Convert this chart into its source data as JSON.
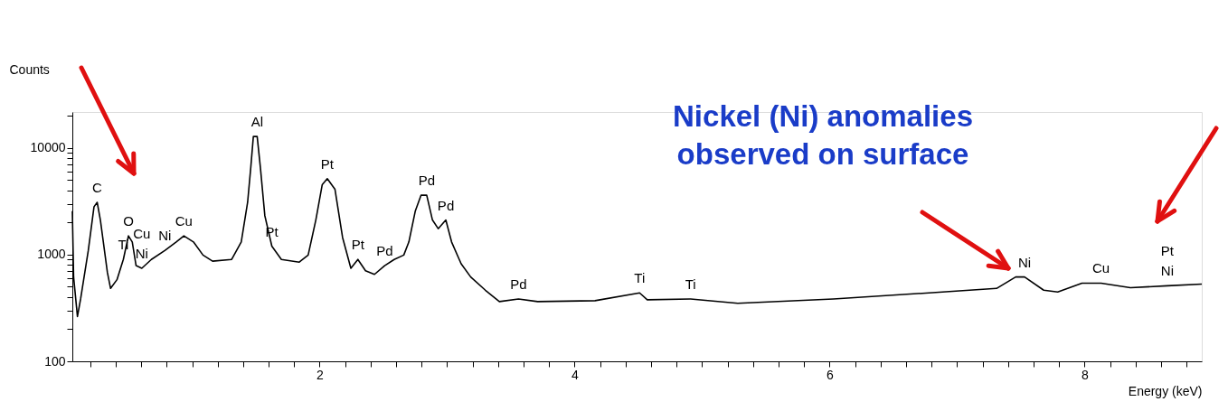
{
  "chart_data": {
    "type": "line",
    "xlabel": "Energy (keV)",
    "ylabel": "Counts",
    "log": "y",
    "grid": false,
    "marker": "none",
    "line_style": "solid",
    "xlim": [
      0.06,
      8.92
    ],
    "ylim": [
      100,
      21700
    ],
    "xticks": [
      {
        "value": 0.2,
        "label": null
      },
      {
        "value": 0.4,
        "label": null
      },
      {
        "value": 0.6,
        "label": null
      },
      {
        "value": 0.8,
        "label": null
      },
      {
        "value": 1,
        "label": null
      },
      {
        "value": 1.2,
        "label": null
      },
      {
        "value": 1.4,
        "label": null
      },
      {
        "value": 1.6,
        "label": null
      },
      {
        "value": 1.8,
        "label": null
      },
      2,
      {
        "value": 2.2,
        "label": null
      },
      {
        "value": 2.4,
        "label": null
      },
      {
        "value": 2.6,
        "label": null
      },
      {
        "value": 2.8,
        "label": null
      },
      {
        "value": 3,
        "label": null
      },
      {
        "value": 3.2,
        "label": null
      },
      {
        "value": 3.4,
        "label": null
      },
      {
        "value": 3.6,
        "label": null
      },
      {
        "value": 3.8,
        "label": null
      },
      4,
      {
        "value": 4.2,
        "label": null
      },
      {
        "value": 4.4,
        "label": null
      },
      {
        "value": 4.6,
        "label": null
      },
      {
        "value": 4.8,
        "label": null
      },
      {
        "value": 5,
        "label": null
      },
      {
        "value": 5.2,
        "label": null
      },
      {
        "value": 5.4,
        "label": null
      },
      {
        "value": 5.6,
        "label": null
      },
      {
        "value": 5.8,
        "label": null
      },
      6,
      {
        "value": 6.2,
        "label": null
      },
      {
        "value": 6.4,
        "label": null
      },
      {
        "value": 6.6,
        "label": null
      },
      {
        "value": 6.8,
        "label": null
      },
      {
        "value": 7,
        "label": null
      },
      {
        "value": 7.2,
        "label": null
      },
      {
        "value": 7.4,
        "label": null
      },
      {
        "value": 7.6,
        "label": null
      },
      {
        "value": 7.8,
        "label": null
      },
      8,
      {
        "value": 8.2,
        "label": null
      },
      {
        "value": 8.4,
        "label": null
      },
      {
        "value": 8.6,
        "label": null
      },
      {
        "value": 8.8,
        "label": null
      }
    ],
    "yticks": [
      100,
      {
        "value": 200,
        "label": null
      },
      {
        "value": 300,
        "label": null
      },
      {
        "value": 400,
        "label": null
      },
      {
        "value": 500,
        "label": null
      },
      {
        "value": 600,
        "label": null
      },
      {
        "value": 700,
        "label": null
      },
      {
        "value": 800,
        "label": null
      },
      {
        "value": 900,
        "label": null
      },
      1000,
      {
        "value": 2000,
        "label": null
      },
      {
        "value": 3000,
        "label": null
      },
      {
        "value": 4000,
        "label": null
      },
      {
        "value": 5000,
        "label": null
      },
      {
        "value": 6000,
        "label": null
      },
      {
        "value": 7000,
        "label": null
      },
      {
        "value": 8000,
        "label": null
      },
      {
        "value": 9000,
        "label": null
      },
      10000,
      {
        "value": 20000,
        "label": null
      }
    ],
    "series": [
      {
        "color": "#000000",
        "x": [
          0.06,
          0.07,
          0.1,
          0.125,
          0.185,
          0.23,
          0.255,
          0.28,
          0.335,
          0.36,
          0.41,
          0.46,
          0.5,
          0.53,
          0.56,
          0.605,
          0.68,
          0.785,
          0.875,
          0.935,
          1.01,
          1.085,
          1.16,
          1.31,
          1.385,
          1.435,
          1.46,
          1.48,
          1.51,
          1.535,
          1.57,
          1.625,
          1.7,
          1.84,
          1.91,
          1.97,
          2.02,
          2.06,
          2.12,
          2.18,
          2.245,
          2.3,
          2.36,
          2.43,
          2.51,
          2.585,
          2.66,
          2.7,
          2.75,
          2.795,
          2.84,
          2.885,
          2.93,
          2.99,
          3.035,
          3.11,
          3.185,
          3.3,
          3.41,
          3.56,
          3.71,
          4.16,
          4.51,
          4.57,
          4.91,
          5.28,
          6.03,
          6.78,
          7.31,
          7.46,
          7.53,
          7.68,
          7.79,
          7.98,
          8.13,
          8.36,
          8.65,
          8.92
        ],
        "values": [
          2550,
          617,
          263,
          384,
          1090,
          2810,
          3090,
          2110,
          680,
          482,
          582,
          901,
          1500,
          1315,
          788,
          745,
          901,
          1090,
          1315,
          1500,
          1315,
          990,
          868,
          901,
          1315,
          3090,
          6590,
          12800,
          12800,
          6590,
          2320,
          1200,
          901,
          850,
          990,
          2110,
          4510,
          5150,
          4100,
          1445,
          745,
          901,
          705,
          653,
          788,
          901,
          990,
          1315,
          2550,
          3600,
          3600,
          2110,
          1750,
          2110,
          1315,
          820,
          617,
          464,
          363,
          384,
          363,
          370,
          438,
          377,
          384,
          350,
          384,
          438,
          482,
          617,
          617,
          464,
          446,
          540,
          540,
          490,
          510,
          530
        ]
      }
    ],
    "annotations": [
      {
        "text": "C",
        "x": 0.255,
        "y": 3090
      },
      {
        "text": "Ti",
        "x": 0.46,
        "y": 901
      },
      {
        "text": "O",
        "x": 0.5,
        "y": 1500
      },
      {
        "text": "Cu",
        "x": 0.605,
        "y": 745
      },
      {
        "text": "Ni",
        "x": 0.605,
        "y": 745
      },
      {
        "text": "Cu",
        "x": 0.935,
        "y": 1500
      },
      {
        "text": "Ni",
        "x": 0.785,
        "y": 1090
      },
      {
        "text": "Al",
        "x": 1.51,
        "y": 12800
      },
      {
        "text": "Pt",
        "x": 1.625,
        "y": 1200
      },
      {
        "text": "Pt",
        "x": 2.06,
        "y": 5150
      },
      {
        "text": "Pt",
        "x": 2.3,
        "y": 901
      },
      {
        "text": "Pd",
        "x": 2.51,
        "y": 788
      },
      {
        "text": "Pd",
        "x": 2.84,
        "y": 3600
      },
      {
        "text": "Pd",
        "x": 2.99,
        "y": 2110
      },
      {
        "text": "Pd",
        "x": 3.56,
        "y": 384
      },
      {
        "text": "Ti",
        "x": 4.51,
        "y": 438
      },
      {
        "text": "Ti",
        "x": 4.91,
        "y": 384
      },
      {
        "text": "Ni",
        "x": 7.53,
        "y": 617
      },
      {
        "text": "Cu",
        "x": 8.13,
        "y": 540
      },
      {
        "text": "Pt",
        "x": 8.65,
        "y": 510
      },
      {
        "text": "Ni",
        "x": 8.65,
        "y": 510
      },
      "Nickel (Ni) anomalies\nobserved on surface"
    ]
  }
}
